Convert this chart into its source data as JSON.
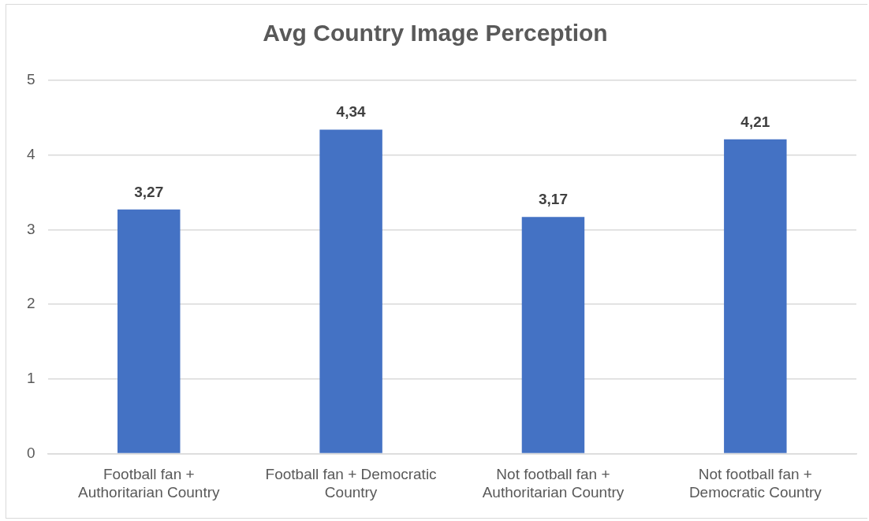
{
  "chart_data": {
    "type": "bar",
    "title": "Avg Country Image Perception",
    "categories": [
      "Football fan + Authoritarian Country",
      "Football fan + Democratic Country",
      "Not football fan + Authoritarian Country",
      "Not football fan + Democratic Country"
    ],
    "values": [
      3.27,
      4.34,
      3.17,
      4.21
    ],
    "value_labels": [
      "3,27",
      "4,34",
      "3,17",
      "4,21"
    ],
    "color": "#4472c4",
    "ylim": [
      0,
      5
    ],
    "yticks": [
      0,
      1,
      2,
      3,
      4,
      5
    ],
    "grid": "y"
  }
}
